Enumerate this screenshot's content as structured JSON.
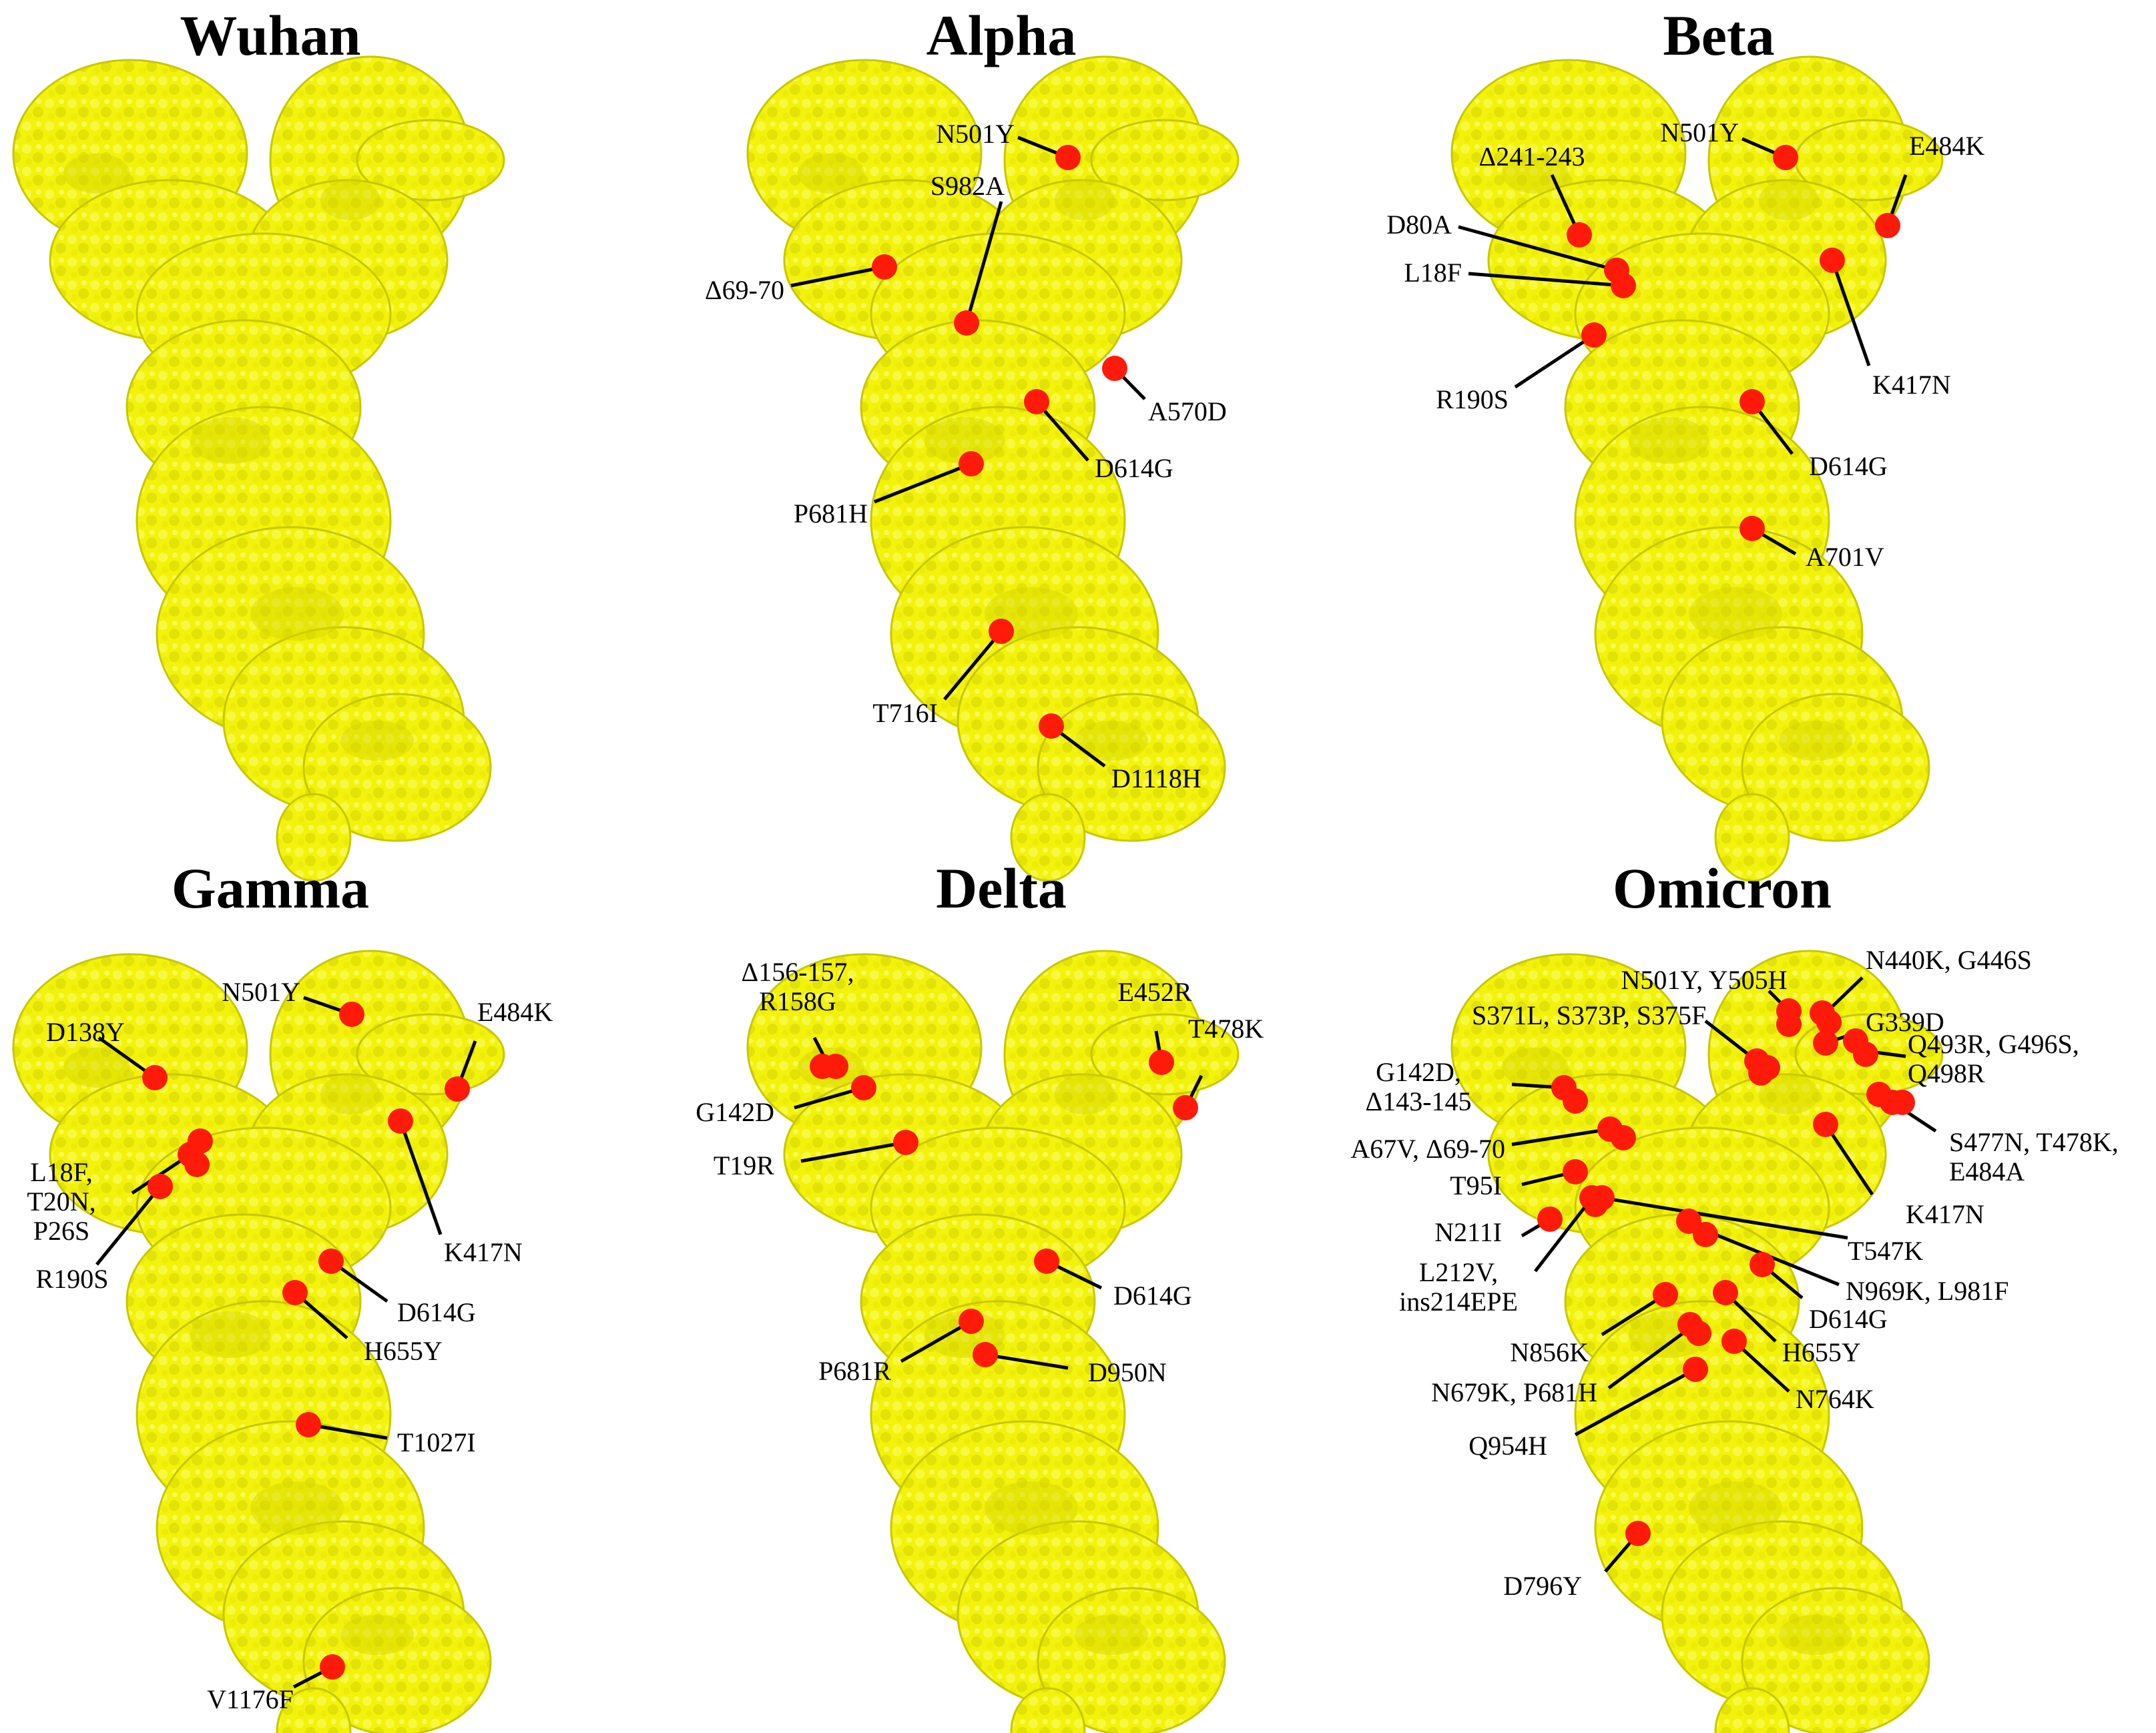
{
  "colors": {
    "protein": "#f2f20c",
    "protein_shade": "#c8c800",
    "mutation": "#ff1a0a",
    "leader": "#000000"
  },
  "panels": [
    {
      "title": "Wuhan",
      "mutations": []
    },
    {
      "title": "Alpha",
      "mutations": [
        {
          "label": [
            "N501Y"
          ]
        },
        {
          "label": [
            "S982A"
          ]
        },
        {
          "label": [
            "Δ69-70"
          ]
        },
        {
          "label": [
            "A570D"
          ]
        },
        {
          "label": [
            "D614G"
          ]
        },
        {
          "label": [
            "P681H"
          ]
        },
        {
          "label": [
            "T716I"
          ]
        },
        {
          "label": [
            "D1118H"
          ]
        }
      ]
    },
    {
      "title": "Beta",
      "mutations": [
        {
          "label": [
            "Δ241-243"
          ]
        },
        {
          "label": [
            "N501Y"
          ]
        },
        {
          "label": [
            "E484K"
          ]
        },
        {
          "label": [
            "D80A"
          ]
        },
        {
          "label": [
            "L18F"
          ]
        },
        {
          "label": [
            "R190S"
          ]
        },
        {
          "label": [
            "K417N"
          ]
        },
        {
          "label": [
            "D614G"
          ]
        },
        {
          "label": [
            "A701V"
          ]
        }
      ]
    },
    {
      "title": "Gamma",
      "mutations": [
        {
          "label": [
            "N501Y"
          ]
        },
        {
          "label": [
            "E484K"
          ]
        },
        {
          "label": [
            "D138Y"
          ]
        },
        {
          "label": [
            "L18F,",
            "T20N,",
            "P26S"
          ]
        },
        {
          "label": [
            "R190S"
          ]
        },
        {
          "label": [
            "K417N"
          ]
        },
        {
          "label": [
            "D614G"
          ]
        },
        {
          "label": [
            "H655Y"
          ]
        },
        {
          "label": [
            "T1027I"
          ]
        },
        {
          "label": [
            "V1176F"
          ]
        }
      ]
    },
    {
      "title": "Delta",
      "mutations": [
        {
          "label": [
            "Δ156-157,",
            "R158G"
          ]
        },
        {
          "label": [
            "E452R"
          ]
        },
        {
          "label": [
            "T478K"
          ]
        },
        {
          "label": [
            "G142D"
          ]
        },
        {
          "label": [
            "T19R"
          ]
        },
        {
          "label": [
            "D614G"
          ]
        },
        {
          "label": [
            "P681R"
          ]
        },
        {
          "label": [
            "D950N"
          ]
        }
      ]
    },
    {
      "title": "Omicron",
      "mutations": [
        {
          "label": [
            "N501Y, Y505H"
          ]
        },
        {
          "label": [
            "N440K, G446S"
          ]
        },
        {
          "label": [
            "S371L, S373P, S375F"
          ]
        },
        {
          "label": [
            "G339D"
          ]
        },
        {
          "label": [
            "Q493R, G496S,",
            "Q498R"
          ]
        },
        {
          "label": [
            "G142D,",
            "Δ143-145"
          ]
        },
        {
          "label": [
            "S477N, T478K,",
            "E484A"
          ]
        },
        {
          "label": [
            "A67V, Δ69-70"
          ]
        },
        {
          "label": [
            "T95I"
          ]
        },
        {
          "label": [
            "K417N"
          ]
        },
        {
          "label": [
            "N211I"
          ]
        },
        {
          "label": [
            "T547K"
          ]
        },
        {
          "label": [
            "L212V,",
            "ins214EPE"
          ]
        },
        {
          "label": [
            "N969K, L981F"
          ]
        },
        {
          "label": [
            "D614G"
          ]
        },
        {
          "label": [
            "N856K"
          ]
        },
        {
          "label": [
            "H655Y"
          ]
        },
        {
          "label": [
            "N679K, P681H"
          ]
        },
        {
          "label": [
            "N764K"
          ]
        },
        {
          "label": [
            "Q954H"
          ]
        },
        {
          "label": [
            "D796Y"
          ]
        }
      ]
    }
  ]
}
